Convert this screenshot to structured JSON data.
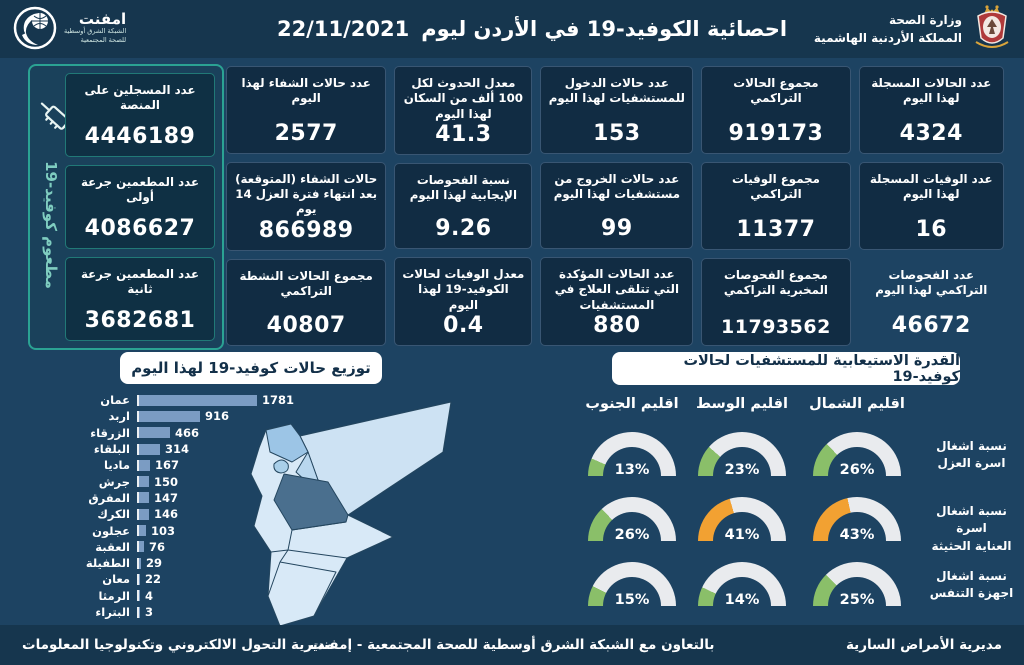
{
  "header": {
    "title": "احصائية الكوفيد-19 في الأردن ليوم",
    "date": "22/11/2021",
    "emphnet": {
      "name": "امفنت",
      "sub1": "الشبكة الشرق أوسطية",
      "sub2": "للصحة المجتمعية"
    },
    "ministry": {
      "line1": "وزارة الصحة",
      "line2": "المملكة الأردنية الهاشمية"
    }
  },
  "stats_columns": [
    {
      "cards": [
        {
          "label": "عدد الحالات المسجلة لهذا اليوم",
          "value": "4324"
        },
        {
          "label": "عدد الوفيات المسجلة لهذا اليوم",
          "value": "16"
        },
        {
          "label": "عدد الفحوصات التراكمي لهذا اليوم",
          "value": "46672",
          "plain": true
        }
      ]
    },
    {
      "cards": [
        {
          "label": "مجموع الحالات التراكمي",
          "value": "919173"
        },
        {
          "label": "مجموع الوفيات التراكمي",
          "value": "11377"
        },
        {
          "label": "مجموع الفحوصات المخبرية التراكمي",
          "value": "11793562"
        }
      ]
    },
    {
      "cards": [
        {
          "label": "عدد حالات الدخول للمستشفيات لهذا اليوم",
          "value": "153"
        },
        {
          "label": "عدد حالات الخروج من مستشفيات لهذا اليوم",
          "value": "99"
        },
        {
          "label": "عدد الحالات المؤكدة التي تتلقى العلاج في المستشفيات",
          "value": "880"
        }
      ]
    },
    {
      "cards": [
        {
          "label": "معدل الحدوث لكل 100 ألف من السكان لهذا اليوم",
          "value": "41.3"
        },
        {
          "label": "نسبة الفحوصات الإيجابية لهذا اليوم",
          "value": "9.26"
        },
        {
          "label": "معدل الوفيات لحالات الكوفيد-19 لهذا اليوم",
          "value": "0.4"
        }
      ]
    },
    {
      "cards": [
        {
          "label": "عدد حالات الشفاء لهذا اليوم",
          "value": "2577"
        },
        {
          "label": "حالات الشفاء (المتوقعة) بعد انتهاء فترة العزل 14 يوم",
          "value": "866989"
        },
        {
          "label": "مجموع الحالات النشطة التراكمي",
          "value": "40807"
        }
      ]
    }
  ],
  "vaccination": {
    "side_label": "مطعوم كوفيد-19",
    "cards": [
      {
        "label": "عدد المسجلين على المنصة",
        "value": "4446189"
      },
      {
        "label": "عدد المطعمين جرعة أولى",
        "value": "4086627"
      },
      {
        "label": "عدد المطعمين جرعة ثانية",
        "value": "3682681"
      }
    ]
  },
  "distribution": {
    "title": "توزيع حالات كوفيد-19 لهذا اليوم",
    "cities": [
      "عمان",
      "اربد",
      "الزرقاء",
      "البلقاء",
      "ماديا",
      "جرش",
      "المفرق",
      "الكرك",
      "عجلون",
      "العقبة",
      "الطفيلة",
      "معان",
      "الرمثا",
      "البتراء"
    ],
    "values": [
      1781,
      916,
      466,
      314,
      167,
      150,
      147,
      146,
      103,
      76,
      29,
      22,
      4,
      3
    ]
  },
  "capacity": {
    "title": "القدرة الاستيعابية للمستشفيات لحالات كوفيد-19",
    "regions": [
      "اقليم الشمال",
      "اقليم الوسط",
      "اقليم الجنوب"
    ],
    "rows": [
      {
        "label": "نسبة اشغال\nاسرة العزل",
        "values": [
          26,
          23,
          13
        ],
        "colors": [
          "green",
          "green",
          "green"
        ]
      },
      {
        "label": "نسبة اشغال اسرة\nالعناية الحثيثة",
        "values": [
          43,
          41,
          26
        ],
        "colors": [
          "orange",
          "orange",
          "green"
        ]
      },
      {
        "label": "نسبة اشغال\nاجهزة التنفس",
        "values": [
          25,
          14,
          15
        ],
        "colors": [
          "green",
          "green",
          "green"
        ]
      }
    ]
  },
  "footer": {
    "right": "مديرية الأمراض السارية",
    "center": "بالتعاون مع الشبكة الشرق أوسطية للصحة المجتمعية - إمفنت",
    "left": "مديرية التحول الالكتروني وتكنولوجيا المعلومات"
  },
  "colors": {
    "page_bg": "#1d4362",
    "card_bg": "#112c43",
    "accent_teal": "#2ba293",
    "bar": "#7b9cc3",
    "gauge_green": "#8abf69",
    "gauge_orange": "#f2a132",
    "gauge_track": "#e9ebee"
  },
  "chart_data": [
    {
      "type": "bar",
      "orientation": "horizontal",
      "title": "توزيع حالات كوفيد-19 لهذا اليوم",
      "categories": [
        "عمان",
        "اربد",
        "الزرقاء",
        "البلقاء",
        "ماديا",
        "جرش",
        "المفرق",
        "الكرك",
        "عجلون",
        "العقبة",
        "الطفيلة",
        "معان",
        "الرمثا",
        "البتراء"
      ],
      "values": [
        1781,
        916,
        466,
        314,
        167,
        150,
        147,
        146,
        103,
        76,
        29,
        22,
        4,
        3
      ],
      "xlabel": "",
      "ylabel": "",
      "xlim": [
        0,
        1800
      ],
      "grid": false,
      "legend": false
    },
    {
      "type": "gauge",
      "title": "القدرة الاستيعابية للمستشفيات لحالات كوفيد-19",
      "unit": "%",
      "columns": [
        "اقليم الشمال",
        "اقليم الوسط",
        "اقليم الجنوب"
      ],
      "rows": [
        {
          "label": "نسبة اشغال اسرة العزل",
          "values": [
            26,
            23,
            13
          ]
        },
        {
          "label": "نسبة اشغال اسرة العناية الحثيثة",
          "values": [
            43,
            41,
            26
          ]
        },
        {
          "label": "نسبة اشغال اجهزة التنفس",
          "values": [
            25,
            14,
            15
          ]
        }
      ]
    }
  ]
}
